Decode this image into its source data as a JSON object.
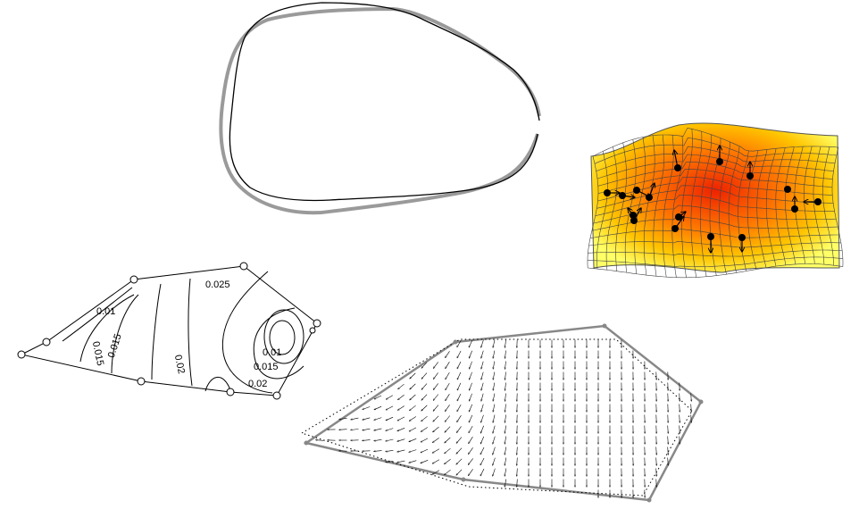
{
  "panels": {
    "outline_comparison": {
      "curves": [
        "reference-outline",
        "target-outline"
      ],
      "colors": {
        "reference": "#9a9a9a",
        "target": "#000000"
      }
    },
    "deformation_grid": {
      "landmark_count": 16,
      "colors": {
        "low": "#ffff66",
        "mid": "#ffa000",
        "high": "#ee2200"
      }
    },
    "contour_plot": {
      "labels": [
        {
          "text": "0.01"
        },
        {
          "text": "0.015"
        },
        {
          "text": "0.015"
        },
        {
          "text": "0.02"
        },
        {
          "text": "0.025"
        },
        {
          "text": "0.01"
        },
        {
          "text": "0.015"
        },
        {
          "text": "0.02"
        }
      ],
      "landmark_count": 9
    },
    "vector_field": {
      "landmark_count": 6
    }
  }
}
